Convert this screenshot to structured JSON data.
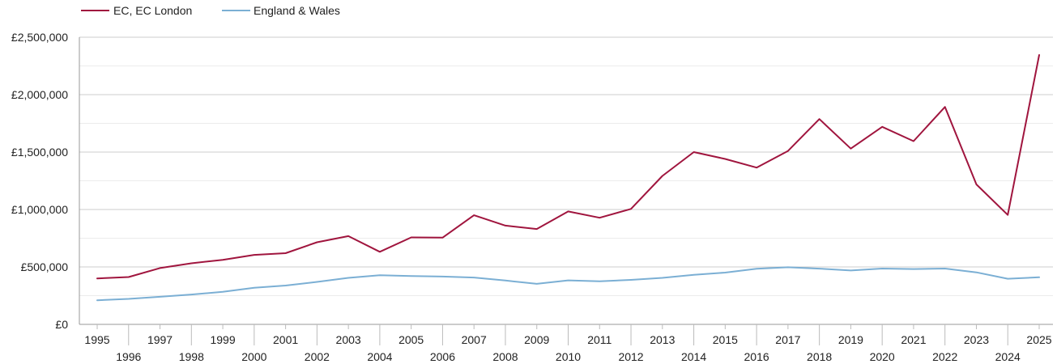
{
  "chart_data": {
    "type": "line",
    "x": [
      1995,
      1996,
      1997,
      1998,
      1999,
      2000,
      2001,
      2002,
      2003,
      2004,
      2005,
      2006,
      2007,
      2008,
      2009,
      2010,
      2011,
      2012,
      2013,
      2014,
      2015,
      2016,
      2017,
      2018,
      2019,
      2020,
      2021,
      2022,
      2023,
      2024,
      2025
    ],
    "series": [
      {
        "name": "EC, EC London",
        "color": "#a0153e",
        "values": [
          400000,
          412000,
          490000,
          532000,
          562000,
          605000,
          620000,
          715000,
          768000,
          632000,
          757000,
          755000,
          950000,
          860000,
          830000,
          983000,
          928000,
          1005000,
          1292000,
          1500000,
          1440000,
          1365000,
          1510000,
          1787000,
          1530000,
          1720000,
          1595000,
          1893000,
          1218000,
          953000,
          2345000
        ]
      },
      {
        "name": "England & Wales",
        "color": "#7bafd4",
        "values": [
          210000,
          222000,
          240000,
          260000,
          283000,
          318000,
          338000,
          370000,
          405000,
          428000,
          421000,
          416000,
          408000,
          382000,
          353000,
          383000,
          375000,
          387000,
          405000,
          432000,
          451000,
          484000,
          497000,
          485000,
          469000,
          486000,
          482000,
          486000,
          453000,
          397000,
          410000
        ]
      }
    ],
    "yticks": [
      0,
      500000,
      1000000,
      1500000,
      2000000,
      2500000
    ],
    "ytick_labels": [
      "£0",
      "£500,000",
      "£1,000,000",
      "£1,500,000",
      "£2,000,000",
      "£2,500,000"
    ],
    "ylim": [
      0,
      2500000
    ],
    "grid": true,
    "legend_position": "top-left"
  }
}
